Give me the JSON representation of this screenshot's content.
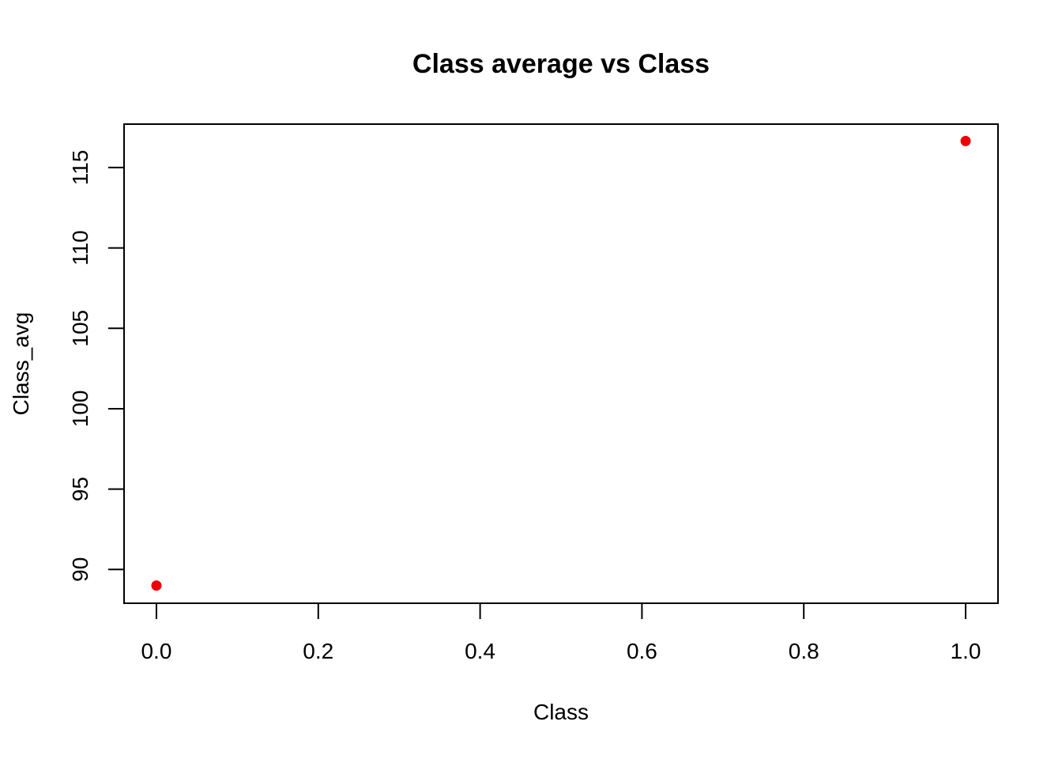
{
  "chart_data": {
    "type": "scatter",
    "title": "Class average vs Class",
    "xlabel": "Class",
    "ylabel": "Class_avg",
    "xlim": [
      -0.04,
      1.04
    ],
    "ylim": [
      87.9,
      117.7
    ],
    "x_ticks": [
      0.0,
      0.2,
      0.4,
      0.6,
      0.8,
      1.0
    ],
    "x_tick_labels": [
      "0.0",
      "0.2",
      "0.4",
      "0.6",
      "0.8",
      "1.0"
    ],
    "y_ticks": [
      90,
      95,
      100,
      105,
      110,
      115
    ],
    "y_tick_labels": [
      "90",
      "95",
      "100",
      "105",
      "110",
      "115"
    ],
    "grid": false,
    "series": [
      {
        "color": "#ee0000",
        "points": [
          {
            "x": 0,
            "y": 89
          },
          {
            "x": 1,
            "y": 116.65
          }
        ]
      }
    ]
  }
}
